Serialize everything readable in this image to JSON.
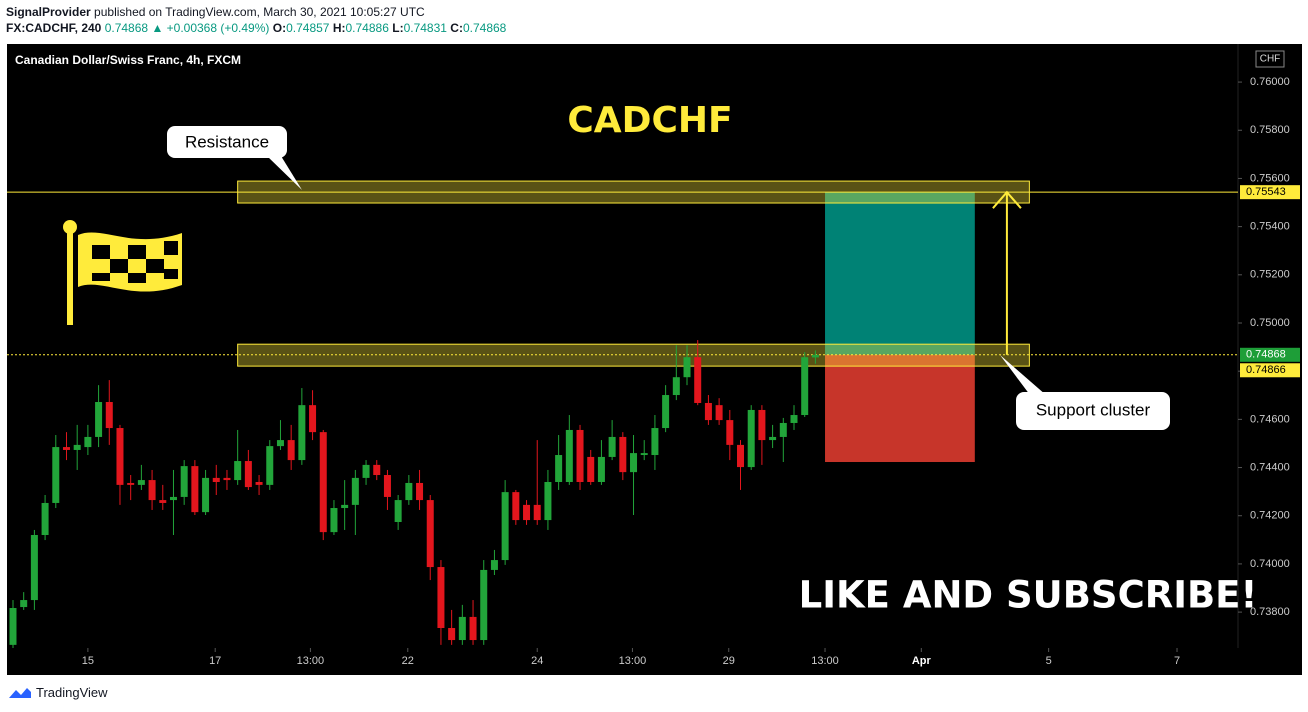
{
  "header": {
    "publisher": "SignalProvider",
    "published": "published on TradingView.com, March 30, 2021 10:05:27 UTC",
    "symbol": "FX:CADCHF, 240",
    "last": "0.74868",
    "change": "▲ +0.00368 (+0.49%)",
    "open_label": "O:",
    "open": "0.74857",
    "high_label": "H:",
    "high": "0.74886",
    "low_label": "L:",
    "low": "0.74831",
    "close_label": "C:",
    "close": "0.74868"
  },
  "chart_data": {
    "type": "candlestick",
    "title": "Canadian Dollar/Swiss Franc, 4h, FXCM",
    "heading": "CADCHF",
    "currency": "CHF",
    "up_color": "#22a53a",
    "down_color": "#e3161d",
    "x": [
      0,
      1,
      2,
      3,
      4,
      5,
      6,
      7,
      8,
      9,
      10,
      11,
      12,
      13,
      14,
      15,
      16,
      17,
      18,
      19,
      20,
      21,
      22,
      23,
      24,
      25,
      26,
      27,
      28,
      29,
      30,
      31,
      32,
      33,
      34,
      35,
      36,
      37,
      38,
      39,
      40,
      41,
      42,
      43,
      44,
      45,
      46,
      47,
      48,
      49,
      50,
      51,
      52,
      53,
      54,
      55,
      56,
      57,
      58,
      59,
      60,
      61,
      62,
      63,
      64,
      65,
      66,
      67,
      68,
      69,
      70,
      71,
      72,
      73,
      74,
      75
    ],
    "open": [
      0.73664,
      0.73821,
      0.7385,
      0.7412,
      0.74253,
      0.74485,
      0.74473,
      0.74485,
      0.74527,
      0.74672,
      0.74564,
      0.74336,
      0.74328,
      0.74348,
      0.74265,
      0.74265,
      0.74278,
      0.74406,
      0.74215,
      0.74357,
      0.74357,
      0.74348,
      0.74427,
      0.7434,
      0.74328,
      0.74489,
      0.74514,
      0.74431,
      0.74659,
      0.74547,
      0.74132,
      0.74232,
      0.74245,
      0.74357,
      0.74411,
      0.74369,
      0.74174,
      0.74265,
      0.74336,
      0.74265,
      0.73987,
      0.73734,
      0.73684,
      0.7378,
      0.73684,
      0.73975,
      0.74016,
      0.74298,
      0.74245,
      0.74245,
      0.74182,
      0.7434,
      0.7434,
      0.74556,
      0.74444,
      0.7434,
      0.74444,
      0.74527,
      0.74381,
      0.74452,
      0.74452,
      0.74564,
      0.74701,
      0.74775,
      0.74858,
      0.74668,
      0.74659,
      0.74597,
      0.74494,
      0.74402,
      0.74639,
      0.74514,
      0.74527,
      0.74585,
      0.74618,
      0.74857
    ],
    "high": [
      0.7385,
      0.73883,
      0.74141,
      0.74286,
      0.74535,
      0.74547,
      0.74577,
      0.74577,
      0.74742,
      0.74763,
      0.74577,
      0.74369,
      0.74411,
      0.7439,
      0.74328,
      0.7439,
      0.74431,
      0.74431,
      0.7439,
      0.74411,
      0.7439,
      0.74556,
      0.74473,
      0.74369,
      0.74514,
      0.74597,
      0.74577,
      0.7473,
      0.74721,
      0.74556,
      0.74265,
      0.74348,
      0.7439,
      0.74431,
      0.74431,
      0.7439,
      0.74286,
      0.74369,
      0.7439,
      0.74286,
      0.74016,
      0.73809,
      0.7383,
      0.7385,
      0.74016,
      0.74058,
      0.74348,
      0.74307,
      0.74265,
      0.74514,
      0.7439,
      0.74535,
      0.74618,
      0.74577,
      0.74473,
      0.74514,
      0.74597,
      0.74547,
      0.74535,
      0.74514,
      0.74618,
      0.74742,
      0.74908,
      0.74908,
      0.74929,
      0.74701,
      0.74688,
      0.74639,
      0.74514,
      0.74659,
      0.74659,
      0.74577,
      0.74606,
      0.74659,
      0.74879,
      0.74886
    ],
    "low": [
      0.73651,
      0.73809,
      0.73809,
      0.74099,
      0.74232,
      0.74431,
      0.7439,
      0.74452,
      0.74485,
      0.74494,
      0.74245,
      0.74265,
      0.74307,
      0.74224,
      0.74224,
      0.7412,
      0.74245,
      0.74203,
      0.74203,
      0.74286,
      0.74307,
      0.74328,
      0.74307,
      0.74286,
      0.74307,
      0.74473,
      0.7439,
      0.74411,
      0.74514,
      0.74099,
      0.7412,
      0.74141,
      0.7412,
      0.74328,
      0.74348,
      0.74224,
      0.74141,
      0.74245,
      0.74224,
      0.73933,
      0.73664,
      0.73664,
      0.73664,
      0.73664,
      0.73664,
      0.73954,
      0.73996,
      0.74162,
      0.74162,
      0.74162,
      0.74141,
      0.74307,
      0.74328,
      0.74307,
      0.74328,
      0.74328,
      0.74431,
      0.74348,
      0.74203,
      0.74431,
      0.7439,
      0.74547,
      0.7468,
      0.74742,
      0.74659,
      0.74577,
      0.74577,
      0.74431,
      0.74307,
      0.7439,
      0.74411,
      0.74481,
      0.74423,
      0.74556,
      0.7461,
      0.74831
    ],
    "close": [
      0.73817,
      0.7385,
      0.7412,
      0.74253,
      0.74485,
      0.74473,
      0.74494,
      0.74527,
      0.74672,
      0.74564,
      0.74328,
      0.74328,
      0.74348,
      0.74265,
      0.74253,
      0.74278,
      0.74406,
      0.74215,
      0.74357,
      0.7434,
      0.74348,
      0.74427,
      0.74319,
      0.74328,
      0.74489,
      0.74514,
      0.74431,
      0.74659,
      0.74547,
      0.74132,
      0.74232,
      0.74245,
      0.74357,
      0.74411,
      0.74369,
      0.74278,
      0.74265,
      0.74336,
      0.74265,
      0.73987,
      0.73734,
      0.73684,
      0.7378,
      0.73684,
      0.73975,
      0.74016,
      0.74298,
      0.74182,
      0.74182,
      0.74182,
      0.7434,
      0.74452,
      0.74556,
      0.7434,
      0.7434,
      0.74444,
      0.74527,
      0.74381,
      0.7446,
      0.7446,
      0.74564,
      0.74701,
      0.74775,
      0.74858,
      0.74668,
      0.74597,
      0.74597,
      0.74494,
      0.74402,
      0.74639,
      0.74514,
      0.74527,
      0.74585,
      0.74618,
      0.74858,
      0.74868
    ],
    "xlim": [
      -0.56,
      114.5
    ],
    "ylim": [
      0.73651,
      0.76158
    ],
    "xticks": [
      {
        "value": 7,
        "label": "15"
      },
      {
        "value": 18.9,
        "label": "17"
      },
      {
        "value": 27.8,
        "label": "13:00"
      },
      {
        "value": 36.9,
        "label": "22"
      },
      {
        "value": 49,
        "label": "24"
      },
      {
        "value": 57.9,
        "label": "13:00"
      },
      {
        "value": 66.9,
        "label": "29"
      },
      {
        "value": 75.9,
        "label": "13:00"
      },
      {
        "value": 84.9,
        "label": "Apr"
      },
      {
        "value": 96.8,
        "label": "5"
      },
      {
        "value": 108.8,
        "label": "7"
      }
    ],
    "yticks": [
      {
        "value": 0.738,
        "label": "0.73800"
      },
      {
        "value": 0.74,
        "label": "0.74000"
      },
      {
        "value": 0.742,
        "label": "0.74200"
      },
      {
        "value": 0.744,
        "label": "0.74400"
      },
      {
        "value": 0.746,
        "label": "0.74600"
      },
      {
        "value": 0.748,
        "label": "0.74800"
      },
      {
        "value": 0.75,
        "label": "0.75000"
      },
      {
        "value": 0.752,
        "label": "0.75200"
      },
      {
        "value": 0.754,
        "label": "0.75400"
      },
      {
        "value": 0.756,
        "label": "0.75600"
      },
      {
        "value": 0.758,
        "label": "0.75800"
      },
      {
        "value": 0.76,
        "label": "0.76000"
      }
    ],
    "price_lines": [
      {
        "value": 0.75543,
        "color": "#ffeb3b",
        "style": "solid",
        "label_color": "#ffeb3b"
      },
      {
        "value": 0.74868,
        "color": "#ffeb3b",
        "style": "dotted",
        "label_color": "#1e9e38"
      },
      {
        "value": 0.74866,
        "label_color": "#ffeb3b"
      }
    ],
    "zones": [
      {
        "label": "Resistance",
        "low": 0.75498,
        "high": 0.75589,
        "x_range": [
          21,
          95
        ]
      },
      {
        "label": "Support cluster",
        "low": 0.74821,
        "high": 0.74912,
        "x_range": [
          21,
          95
        ]
      }
    ],
    "long_position": {
      "target": 0.75543,
      "entry": 0.74868,
      "stop": 0.74423,
      "x_range": [
        75.9,
        89.9
      ]
    },
    "arrow": {
      "from": 0.74868,
      "to": 0.75543,
      "x": 92.9
    },
    "caption": "LIKE AND SUBSCRIBE!"
  },
  "footer": {
    "brand": "TradingView"
  }
}
